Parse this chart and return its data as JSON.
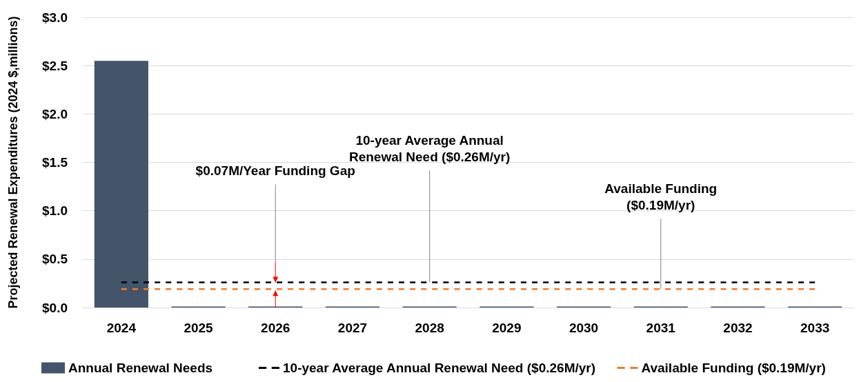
{
  "chart_data": {
    "type": "bar",
    "ylabel": "Projected Renewal Expenditures (2024 $,millions)",
    "categories": [
      "2024",
      "2025",
      "2026",
      "2027",
      "2028",
      "2029",
      "2030",
      "2031",
      "2032",
      "2033"
    ],
    "series": [
      {
        "name": "Annual Renewal Needs",
        "color": "#44546a",
        "values": [
          2.55,
          0.01,
          0.01,
          0.01,
          0.01,
          0.01,
          0.01,
          0.01,
          0.01,
          0.01
        ]
      },
      {
        "name": "10-year Average Annual Renewal Need ($0.26M/yr)",
        "type": "line",
        "color": "#000000",
        "line_style": "dashed",
        "values": [
          0.26,
          0.26,
          0.26,
          0.26,
          0.26,
          0.26,
          0.26,
          0.26,
          0.26,
          0.26
        ]
      },
      {
        "name": "Available Funding ($0.19M/yr)",
        "type": "line",
        "color": "#ed7d31",
        "line_style": "dashed",
        "values": [
          0.19,
          0.19,
          0.19,
          0.19,
          0.19,
          0.19,
          0.19,
          0.19,
          0.19,
          0.19
        ]
      }
    ],
    "ylim": [
      0,
      3
    ],
    "yticks": [
      {
        "value": 0,
        "label": "$0.0"
      },
      {
        "value": 0.5,
        "label": "$0.5"
      },
      {
        "value": 1,
        "label": "$1.0"
      },
      {
        "value": 1.5,
        "label": "$1.5"
      },
      {
        "value": 2,
        "label": "$2.0"
      },
      {
        "value": 2.5,
        "label": "$2.5"
      },
      {
        "value": 3,
        "label": "$3.0"
      }
    ],
    "grid": "y",
    "legend": "bottom",
    "marker": "none",
    "annotations": [
      "$0.07M/Year Funding Gap",
      {
        "text": "10-year Average Annual Renewal Need ($0.26M/yr)",
        "x": "2028",
        "y": 0.26
      },
      {
        "text": "Available Funding ($0.19M/yr)",
        "x": "2031",
        "y": 0.19
      }
    ]
  }
}
